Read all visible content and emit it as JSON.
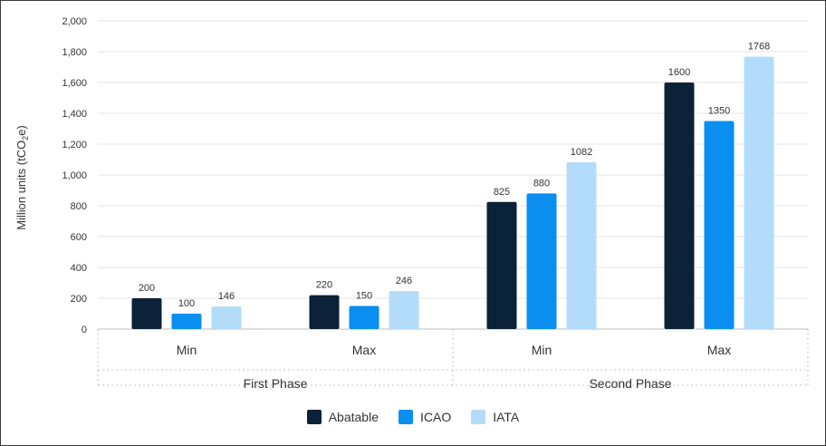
{
  "chart_data": {
    "type": "bar",
    "title": "",
    "ylabel_parts": [
      "Million units (tCO",
      "2",
      "e)"
    ],
    "ylim": [
      0,
      2000
    ],
    "yticks": [
      "0",
      "200",
      "400",
      "600",
      "800",
      "1,000",
      "1,200",
      "1,400",
      "1,600",
      "1,800",
      "2,000"
    ],
    "ytick_values": [
      0,
      200,
      400,
      600,
      800,
      1000,
      1200,
      1400,
      1600,
      1800,
      2000
    ],
    "groups": [
      {
        "name": "First Phase",
        "categories": [
          "Min",
          "Max"
        ]
      },
      {
        "name": "Second Phase",
        "categories": [
          "Min",
          "Max"
        ]
      }
    ],
    "categories": [
      "Min",
      "Max",
      "Min",
      "Max"
    ],
    "series": [
      {
        "name": "Abatable",
        "color": "#0b2239",
        "values": [
          200,
          220,
          825,
          1600
        ],
        "labels": [
          "200",
          "220",
          "825",
          "1600"
        ]
      },
      {
        "name": "ICAO",
        "color": "#0a8ef0",
        "values": [
          100,
          150,
          880,
          1350
        ],
        "labels": [
          "100",
          "150",
          "880",
          "1350"
        ]
      },
      {
        "name": "IATA",
        "color": "#b3dcfb",
        "values": [
          146,
          246,
          1082,
          1768
        ],
        "labels": [
          "146",
          "246",
          "1082",
          "1768"
        ]
      }
    ],
    "legend_position": "bottom",
    "grid": true
  }
}
